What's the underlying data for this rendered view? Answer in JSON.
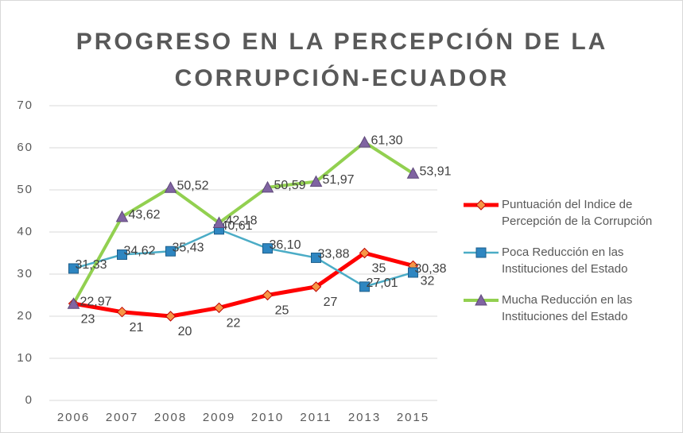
{
  "chart_data": {
    "type": "line",
    "title": "PROGRESO EN LA PERCEPCIÓN DE LA CORRUPCIÓN-ECUADOR",
    "categories": [
      "2006",
      "2007",
      "2008",
      "2009",
      "2010",
      "2011",
      "2013",
      "2015"
    ],
    "series": [
      {
        "name": "Puntuación del Indice de Percepción de la Corrupción",
        "color": "#ff0000",
        "marker": "diamond",
        "marker_color": "#f79646",
        "values": [
          23,
          21,
          20,
          22,
          25,
          27,
          35,
          32
        ]
      },
      {
        "name": "Poca Reducción en las Instituciones del Estado",
        "color": "#4bacc6",
        "marker": "square",
        "marker_color": "#2e86c1",
        "values": [
          31.33,
          34.62,
          35.43,
          40.61,
          36.1,
          33.88,
          27.01,
          30.38
        ],
        "value_labels": [
          "31,33",
          "34,62",
          "35,43",
          "40,61",
          "36,10",
          "33,88",
          "27,01",
          "30,38"
        ]
      },
      {
        "name": "Mucha Reducción en las Instituciones del Estado",
        "color": "#92d050",
        "marker": "triangle",
        "marker_color": "#8064a2",
        "values": [
          22.97,
          43.62,
          50.52,
          42.18,
          50.59,
          51.97,
          61.3,
          53.91
        ],
        "value_labels": [
          "22,97",
          "43,62",
          "50,52",
          "42,18",
          "50,59",
          "51,97",
          "61,30",
          "53,91"
        ]
      }
    ],
    "ylim": [
      0,
      70
    ],
    "yticks": [
      0,
      10,
      20,
      30,
      40,
      50,
      60,
      70
    ],
    "grid": true,
    "legend": "right"
  }
}
